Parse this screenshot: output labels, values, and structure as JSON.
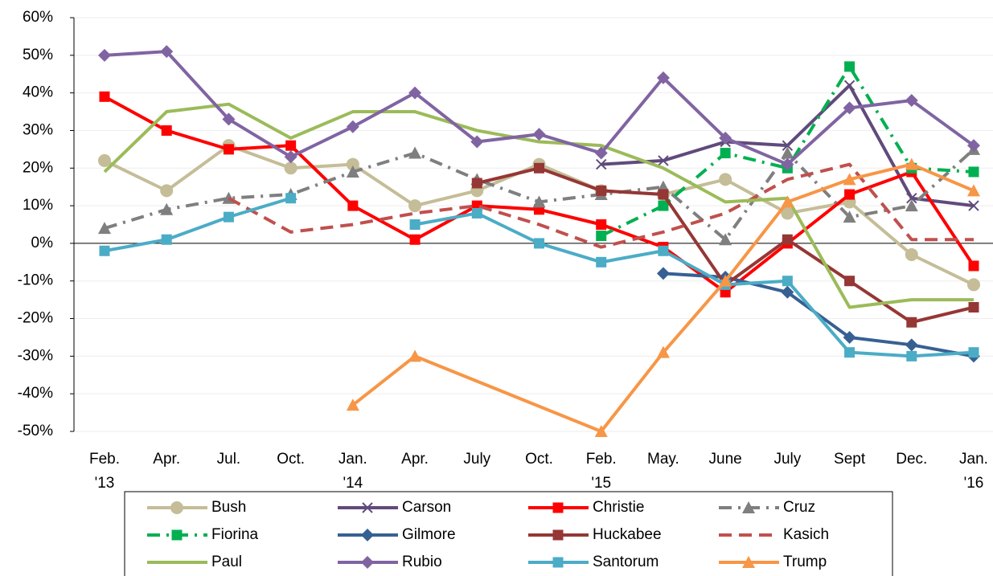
{
  "chart_data": {
    "type": "line",
    "categories": [
      "Feb.\n'13",
      "Apr.",
      "Jul.",
      "Oct.",
      "Jan.\n'14",
      "Apr.",
      "July",
      "Oct.",
      "Feb.\n'15",
      "May.",
      "June",
      "July",
      "Sept",
      "Dec.",
      "Jan.\n'16"
    ],
    "ylim": [
      -50,
      60
    ],
    "yticks": [
      {
        "value": -50,
        "label": "-50%"
      },
      {
        "value": -40,
        "label": "-40%"
      },
      {
        "value": -30,
        "label": "-30%"
      },
      {
        "value": -20,
        "label": "-20%"
      },
      {
        "value": -10,
        "label": "-10%"
      },
      {
        "value": 0,
        "label": "0%"
      },
      {
        "value": 10,
        "label": "10%"
      },
      {
        "value": 20,
        "label": "20%"
      },
      {
        "value": 30,
        "label": "30%"
      },
      {
        "value": 40,
        "label": "40%"
      },
      {
        "value": 50,
        "label": "50%"
      },
      {
        "value": 60,
        "label": "60%"
      }
    ],
    "grid": true,
    "legend": "bottom",
    "series": [
      {
        "name": "Bush",
        "color": "#c4bd97",
        "marker": "circle",
        "values": [
          22,
          14,
          26,
          20,
          21,
          10,
          14,
          21,
          14,
          13,
          17,
          8,
          11,
          -3,
          -11
        ]
      },
      {
        "name": "Carson",
        "color": "#604a7b",
        "marker": "x",
        "values": [
          null,
          null,
          null,
          null,
          null,
          null,
          null,
          null,
          21,
          22,
          27,
          26,
          42,
          12,
          10
        ]
      },
      {
        "name": "Christie",
        "color": "#ff0000",
        "marker": "square",
        "values": [
          39,
          30,
          25,
          26,
          10,
          1,
          10,
          9,
          5,
          -1,
          -13,
          0,
          13,
          19,
          -6
        ]
      },
      {
        "name": "Cruz",
        "color": "#7f7f7f",
        "marker": "triangle",
        "dash": "dashdot",
        "values": [
          4,
          9,
          12,
          13,
          19,
          24,
          17,
          11,
          13,
          15,
          1,
          24,
          7,
          10,
          25
        ]
      },
      {
        "name": "Fiorina",
        "color": "#00b050",
        "marker": "square",
        "dash": "dashdot",
        "values": [
          null,
          null,
          null,
          null,
          null,
          null,
          null,
          null,
          2,
          10,
          24,
          20,
          47,
          20,
          19
        ]
      },
      {
        "name": "Gilmore",
        "color": "#376092",
        "marker": "diamond",
        "values": [
          null,
          null,
          null,
          null,
          null,
          null,
          null,
          null,
          null,
          -8,
          -9,
          -13,
          -25,
          -27,
          -30
        ]
      },
      {
        "name": "Huckabee",
        "color": "#953735",
        "marker": "square",
        "values": [
          null,
          null,
          null,
          null,
          null,
          null,
          16,
          20,
          14,
          13,
          -11,
          1,
          -10,
          -21,
          -17
        ]
      },
      {
        "name": "Kasich",
        "color": "#c0504d",
        "dash": "dash",
        "values": [
          null,
          null,
          12,
          3,
          5,
          8,
          10,
          5,
          -1,
          3,
          8,
          17,
          21,
          1,
          1
        ]
      },
      {
        "name": "Paul",
        "color": "#9bbb59",
        "values": [
          19,
          35,
          37,
          28,
          35,
          35,
          30,
          27,
          26,
          20,
          11,
          12,
          -17,
          -15,
          -15
        ]
      },
      {
        "name": "Rubio",
        "color": "#8064a2",
        "marker": "diamond",
        "values": [
          50,
          51,
          33,
          23,
          31,
          40,
          27,
          29,
          24,
          44,
          28,
          21,
          36,
          38,
          26
        ]
      },
      {
        "name": "Santorum",
        "color": "#4bacc6",
        "marker": "square",
        "values": [
          -2,
          1,
          7,
          12,
          null,
          5,
          8,
          0,
          -5,
          -2,
          -11,
          -10,
          -29,
          -30,
          -29
        ]
      },
      {
        "name": "Trump",
        "color": "#f79646",
        "marker": "triangle",
        "span_gaps": true,
        "values": [
          null,
          null,
          null,
          null,
          -43,
          -30,
          null,
          null,
          -50,
          -29,
          -10,
          11,
          17,
          21,
          14
        ]
      }
    ]
  }
}
